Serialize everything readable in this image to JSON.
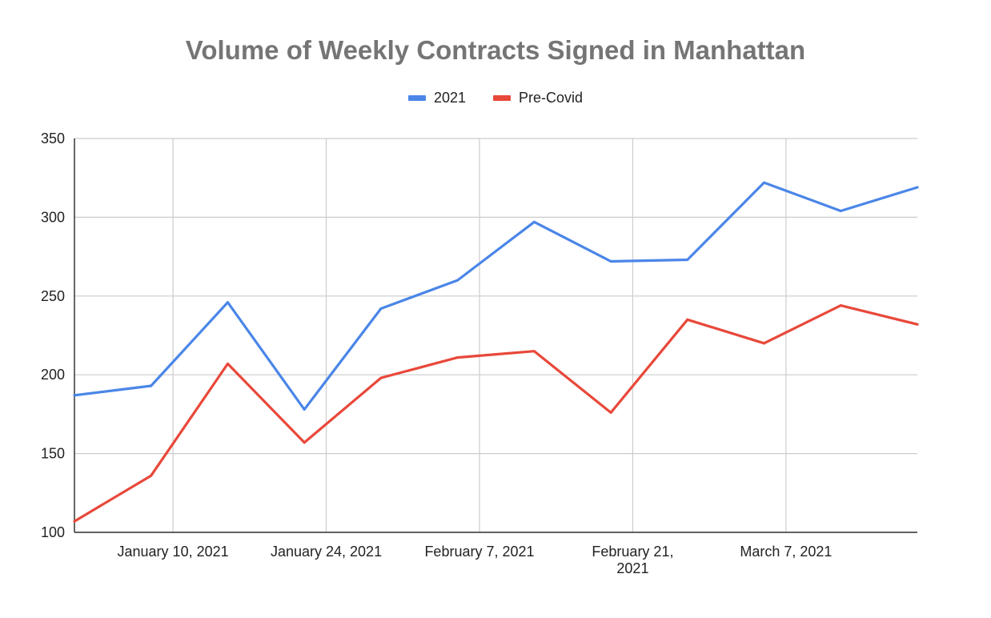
{
  "chart_data": {
    "type": "line",
    "title": "Volume of Weekly Contracts Signed in Manhattan",
    "xlabel": "",
    "ylabel": "",
    "ylim": [
      100,
      350
    ],
    "yticks": [
      "100",
      "150",
      "200",
      "250",
      "300",
      "350"
    ],
    "x": [
      "2021-01-01",
      "2021-01-08",
      "2021-01-15",
      "2021-01-22",
      "2021-01-29",
      "2021-02-05",
      "2021-02-12",
      "2021-02-19",
      "2021-02-26",
      "2021-03-05",
      "2021-03-12",
      "2021-03-19"
    ],
    "xlim": [
      "2021-01-01",
      "2021-03-19"
    ],
    "xticks": [
      {
        "date": "2021-01-10",
        "label": [
          "January 10, 2021"
        ]
      },
      {
        "date": "2021-01-24",
        "label": [
          "January 24, 2021"
        ]
      },
      {
        "date": "2021-02-07",
        "label": [
          "February 7, 2021"
        ]
      },
      {
        "date": "2021-02-21",
        "label": [
          "February 21,",
          "2021"
        ]
      },
      {
        "date": "2021-03-07",
        "label": [
          "March 7, 2021"
        ]
      }
    ],
    "series": [
      {
        "name": "2021",
        "color": "#4a86e8",
        "values": [
          187,
          193,
          246,
          178,
          242,
          260,
          297,
          272,
          273,
          322,
          304,
          319
        ]
      },
      {
        "name": "Pre-Covid",
        "color": "#e8483a",
        "values": [
          107,
          136,
          207,
          157,
          198,
          211,
          215,
          176,
          235,
          220,
          244,
          232
        ]
      }
    ],
    "grid": true,
    "legend": "top"
  }
}
